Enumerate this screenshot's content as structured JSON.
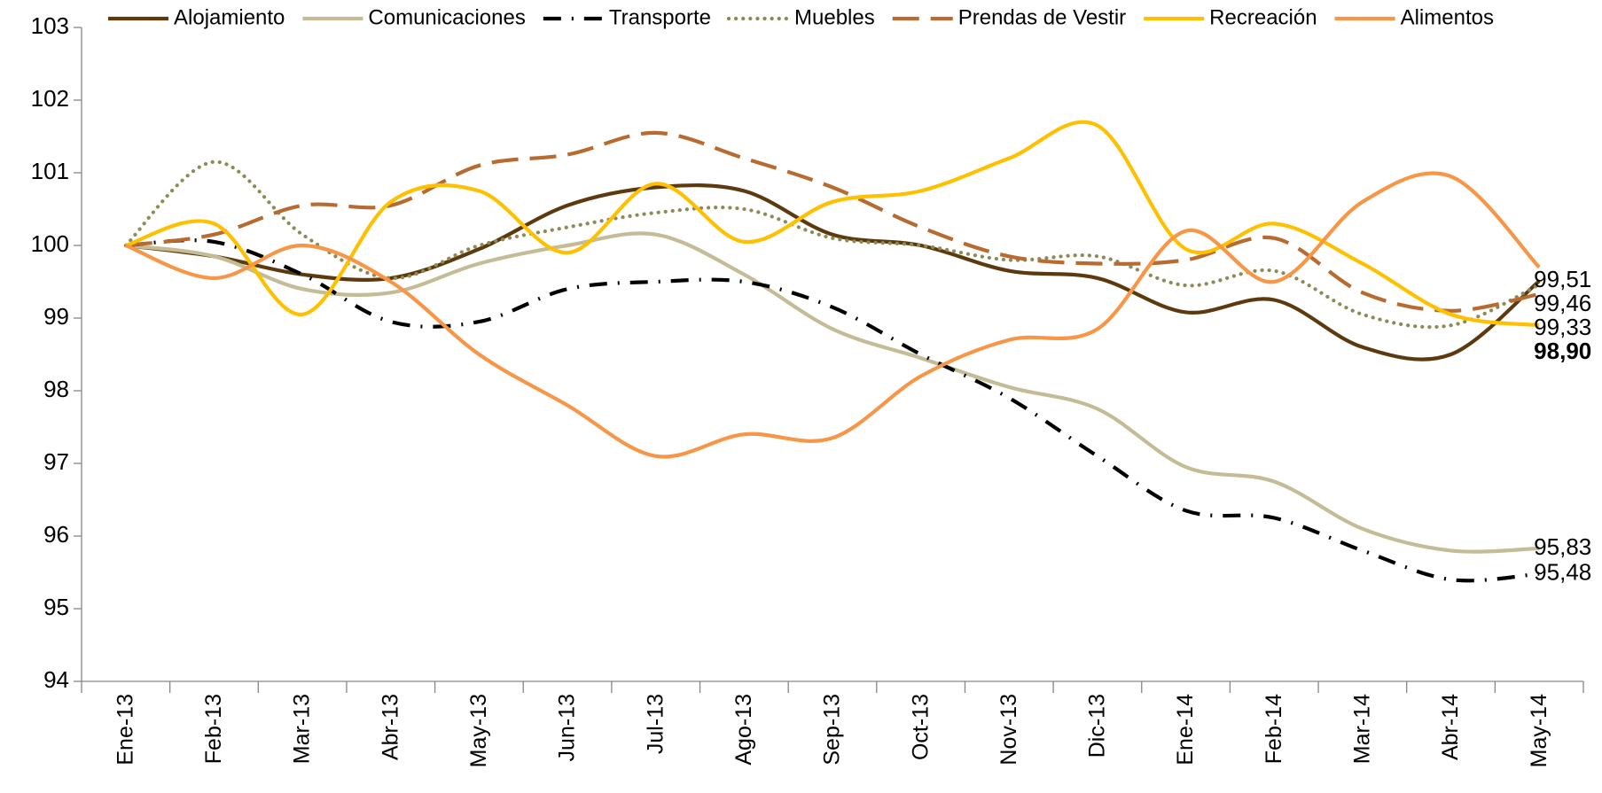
{
  "chart_data": {
    "type": "line",
    "categories": [
      "Ene-13",
      "Feb-13",
      "Mar-13",
      "Abr-13",
      "May-13",
      "Jun-13",
      "Jul-13",
      "Ago-13",
      "Sep-13",
      "Oct-13",
      "Nov-13",
      "Dic-13",
      "Ene-14",
      "Feb-14",
      "Mar-14",
      "Abr-14",
      "May-14"
    ],
    "ylim": [
      94,
      103
    ],
    "yticks": [
      94,
      95,
      96,
      97,
      98,
      99,
      100,
      101,
      102,
      103
    ],
    "grid": false,
    "legend": "top",
    "smooth": true,
    "series": [
      {
        "name": "Alojamiento",
        "color": "#5c3a0e",
        "dash": "solid",
        "label_color": "#5c3a0e",
        "values": [
          100,
          99.85,
          99.6,
          99.55,
          99.95,
          100.55,
          100.8,
          100.75,
          100.15,
          100.0,
          99.65,
          99.55,
          99.08,
          99.25,
          98.6,
          98.5,
          99.51
        ],
        "value_labels": [
          null,
          null,
          null,
          null,
          null,
          null,
          null,
          null,
          null,
          null,
          null,
          null,
          null,
          null,
          null,
          null,
          "99,51"
        ]
      },
      {
        "name": "Comunicaciones",
        "color": "#c4bc96",
        "dash": "solid",
        "label_color": "#6b5a2e",
        "values": [
          100,
          99.85,
          99.4,
          99.35,
          99.75,
          100.0,
          100.15,
          99.6,
          98.85,
          98.45,
          98.05,
          97.75,
          96.95,
          96.75,
          96.1,
          95.8,
          95.83
        ],
        "value_labels": [
          null,
          null,
          null,
          null,
          null,
          null,
          null,
          null,
          null,
          null,
          null,
          null,
          null,
          null,
          null,
          null,
          "95,83"
        ]
      },
      {
        "name": "Transporte",
        "color": "#000000",
        "dash": "dashdot",
        "label_color": "#000000",
        "values": [
          100,
          100.05,
          99.6,
          98.95,
          98.95,
          99.4,
          99.5,
          99.5,
          99.15,
          98.5,
          97.9,
          97.1,
          96.35,
          96.25,
          95.8,
          95.4,
          95.48
        ],
        "value_labels": [
          null,
          null,
          null,
          null,
          null,
          null,
          null,
          null,
          null,
          null,
          null,
          null,
          null,
          null,
          null,
          null,
          "95,48"
        ]
      },
      {
        "name": "Muebles",
        "color": "#8c8a55",
        "dash": "dot",
        "label_color": "#6e6c45",
        "values": [
          100,
          101.15,
          100.15,
          99.55,
          100.0,
          100.25,
          100.45,
          100.5,
          100.1,
          100.0,
          99.8,
          99.85,
          99.45,
          99.65,
          99.05,
          98.9,
          99.46
        ],
        "value_labels": [
          null,
          null,
          null,
          null,
          null,
          null,
          null,
          null,
          null,
          null,
          null,
          null,
          null,
          null,
          null,
          null,
          "99,46"
        ]
      },
      {
        "name": "Prendas de Vestir",
        "color": "#b86b30",
        "dash": "dash",
        "label_color": "#000000",
        "values": [
          100,
          100.15,
          100.55,
          100.55,
          101.1,
          101.25,
          101.55,
          101.2,
          100.8,
          100.25,
          99.85,
          99.75,
          99.8,
          100.1,
          99.35,
          99.1,
          99.33
        ],
        "value_labels": [
          null,
          null,
          null,
          null,
          null,
          null,
          null,
          null,
          null,
          null,
          null,
          null,
          null,
          null,
          null,
          null,
          "99,33"
        ]
      },
      {
        "name": "Recreación",
        "color": "#ffc000",
        "dash": "solid",
        "label_color": "#ffc000",
        "label_bold": true,
        "values": [
          100,
          100.3,
          99.05,
          100.6,
          100.75,
          99.9,
          100.85,
          100.05,
          100.6,
          100.75,
          101.2,
          101.65,
          99.95,
          100.3,
          99.75,
          99.05,
          98.9
        ],
        "value_labels": [
          null,
          null,
          null,
          null,
          null,
          null,
          null,
          null,
          null,
          null,
          null,
          null,
          null,
          null,
          null,
          null,
          "98,90"
        ]
      },
      {
        "name": "Alimentos",
        "color": "#f79646",
        "dash": "solid",
        "values": [
          100,
          99.55,
          100.0,
          99.5,
          98.5,
          97.8,
          97.1,
          97.4,
          97.35,
          98.2,
          98.7,
          98.85,
          100.2,
          99.5,
          100.6,
          100.95,
          99.7
        ]
      }
    ]
  }
}
